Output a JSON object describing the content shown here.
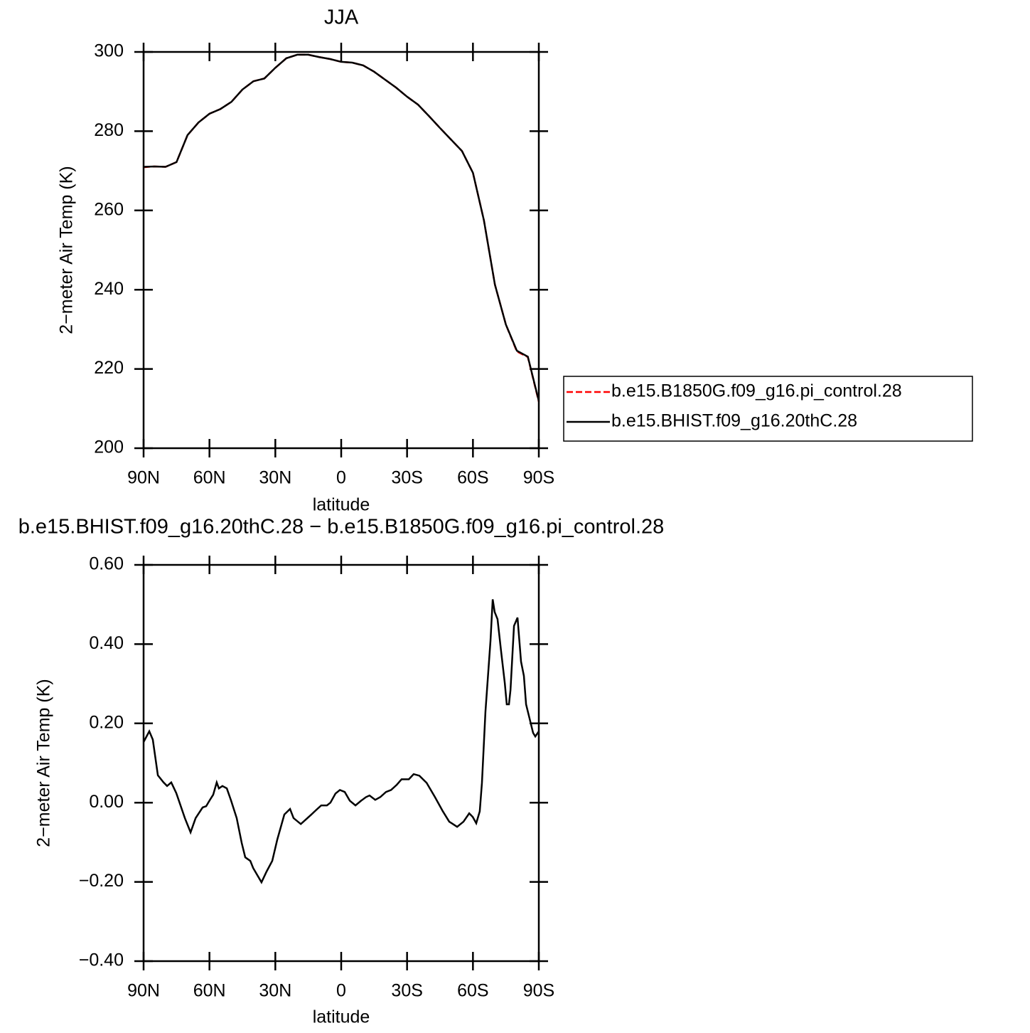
{
  "chart_data": [
    {
      "type": "line",
      "title": "JJA",
      "xlabel": "latitude",
      "ylabel": "2−meter Air Temp (K)",
      "x": [
        90,
        85,
        80,
        75,
        70,
        65,
        60,
        55,
        50,
        45,
        40,
        35,
        30,
        25,
        20,
        15,
        10,
        5,
        0,
        -5,
        -10,
        -15,
        -20,
        -25,
        -30,
        -35,
        -40,
        -45,
        -50,
        -55,
        -60,
        -65,
        -70,
        -75,
        -80,
        -85,
        -90
      ],
      "xlim": [
        90,
        -90
      ],
      "xticks": [
        {
          "value": 90,
          "label": "90N"
        },
        {
          "value": 60,
          "label": "60N"
        },
        {
          "value": 30,
          "label": "30N"
        },
        0,
        {
          "value": -30,
          "label": "30S"
        },
        {
          "value": -60,
          "label": "60S"
        },
        {
          "value": -90,
          "label": "90S"
        }
      ],
      "ylim": [
        200,
        300
      ],
      "yticks": [
        200,
        220,
        240,
        260,
        280,
        300
      ],
      "legend": "right",
      "series": [
        {
          "name": "b.e15.B1850G.f09_g16.pi_control.28",
          "color": "#ff0000",
          "dash": "dashed",
          "values": [
            270.9,
            271.1,
            271,
            272.2,
            279,
            282.2,
            284.4,
            285.6,
            287.4,
            290.5,
            292.6,
            293.3,
            296,
            298.4,
            299.3,
            299.3,
            298.7,
            298.2,
            297.5,
            297.3,
            296.6,
            295,
            293,
            291,
            288.7,
            286.7,
            283.8,
            280.8,
            277.9,
            275,
            269.5,
            257.5,
            241.3,
            231.2,
            224.4,
            223,
            211.7
          ]
        },
        {
          "name": "b.e15.BHIST.f09_g16.20thC.28",
          "color": "#000000",
          "dash": "solid",
          "values": [
            271.0,
            271.1,
            271,
            272.2,
            279,
            282.2,
            284.4,
            285.6,
            287.4,
            290.5,
            292.6,
            293.3,
            296,
            298.4,
            299.3,
            299.3,
            298.7,
            298.2,
            297.5,
            297.3,
            296.6,
            295,
            293,
            291,
            288.7,
            286.7,
            283.8,
            280.8,
            277.9,
            275,
            269.5,
            257.5,
            241.3,
            231.2,
            224.6,
            223.1,
            211.9
          ]
        }
      ]
    },
    {
      "type": "line",
      "title": "b.e15.BHIST.f09_g16.20thC.28 − b.e15.B1850G.f09_g16.pi_control.28",
      "xlabel": "latitude",
      "ylabel": "2−meter Air Temp (K)",
      "x": [
        90,
        87.4,
        85.8,
        83.5,
        80.9,
        79.3,
        77.4,
        75.1,
        71.2,
        68.6,
        66.3,
        63.1,
        61.5,
        59.9,
        58.3,
        56.7,
        55.7,
        54.1,
        52.1,
        50.2,
        47.6,
        45.3,
        43.7,
        41.4,
        40.1,
        36.3,
        34.0,
        31.4,
        29.1,
        25.9,
        23.3,
        21.7,
        18.4,
        16.2,
        13.6,
        11.3,
        9.1,
        6.5,
        4.9,
        2.6,
        0.6,
        -1.6,
        -3.9,
        -6.5,
        -9.1,
        -11.3,
        -12.9,
        -15.5,
        -17.8,
        -20.4,
        -22.7,
        -25.3,
        -27.5,
        -30.8,
        -33.0,
        -35.6,
        -38.9,
        -42.7,
        -46.3,
        -49.2,
        -52.8,
        -55.7,
        -58.3,
        -59.9,
        -61.5,
        -63.1,
        -64.1,
        -65.7,
        -68.0,
        -69.0,
        -69.9,
        -71.2,
        -72.8,
        -74.5,
        -75.4,
        -76.4,
        -77.1,
        -78.7,
        -80.3,
        -81.9,
        -83.2,
        -84.2,
        -85.8,
        -87.4,
        -88.4,
        -90
      ],
      "xlim": [
        90,
        -90
      ],
      "xticks": [
        {
          "value": 90,
          "label": "90N"
        },
        {
          "value": 60,
          "label": "60N"
        },
        {
          "value": 30,
          "label": "30N"
        },
        0,
        {
          "value": -30,
          "label": "30S"
        },
        {
          "value": -60,
          "label": "60S"
        },
        {
          "value": -90,
          "label": "90S"
        }
      ],
      "ylim": [
        -0.4,
        0.6
      ],
      "yticks": [
        {
          "value": -0.4,
          "label": "−0.40"
        },
        {
          "value": -0.2,
          "label": "−0.20"
        },
        {
          "value": 0,
          "label": "0.00"
        },
        {
          "value": 0.2,
          "label": "0.20"
        },
        {
          "value": 0.4,
          "label": "0.40"
        },
        {
          "value": 0.6,
          "label": "0.60"
        }
      ],
      "series": [
        {
          "color": "#000000",
          "dash": "solid",
          "values": [
            0.153,
            0.18,
            0.159,
            0.069,
            0.051,
            0.042,
            0.051,
            0.024,
            -0.039,
            -0.075,
            -0.039,
            -0.012,
            -0.009,
            0.006,
            0.02,
            0.051,
            0.036,
            0.042,
            0.036,
            0.006,
            -0.039,
            -0.102,
            -0.138,
            -0.147,
            -0.165,
            -0.201,
            -0.174,
            -0.147,
            -0.093,
            -0.03,
            -0.016,
            -0.039,
            -0.054,
            -0.043,
            -0.03,
            -0.018,
            -0.007,
            -0.007,
            0.0,
            0.023,
            0.032,
            0.027,
            0.005,
            -0.007,
            0.005,
            0.014,
            0.018,
            0.007,
            0.014,
            0.027,
            0.032,
            0.045,
            0.059,
            0.059,
            0.072,
            0.068,
            0.05,
            0.014,
            -0.022,
            -0.048,
            -0.061,
            -0.048,
            -0.027,
            -0.036,
            -0.052,
            -0.022,
            0.05,
            0.23,
            0.409,
            0.513,
            0.481,
            0.463,
            0.383,
            0.302,
            0.248,
            0.248,
            0.284,
            0.446,
            0.467,
            0.356,
            0.32,
            0.248,
            0.212,
            0.176,
            0.167,
            0.18
          ]
        }
      ]
    }
  ]
}
